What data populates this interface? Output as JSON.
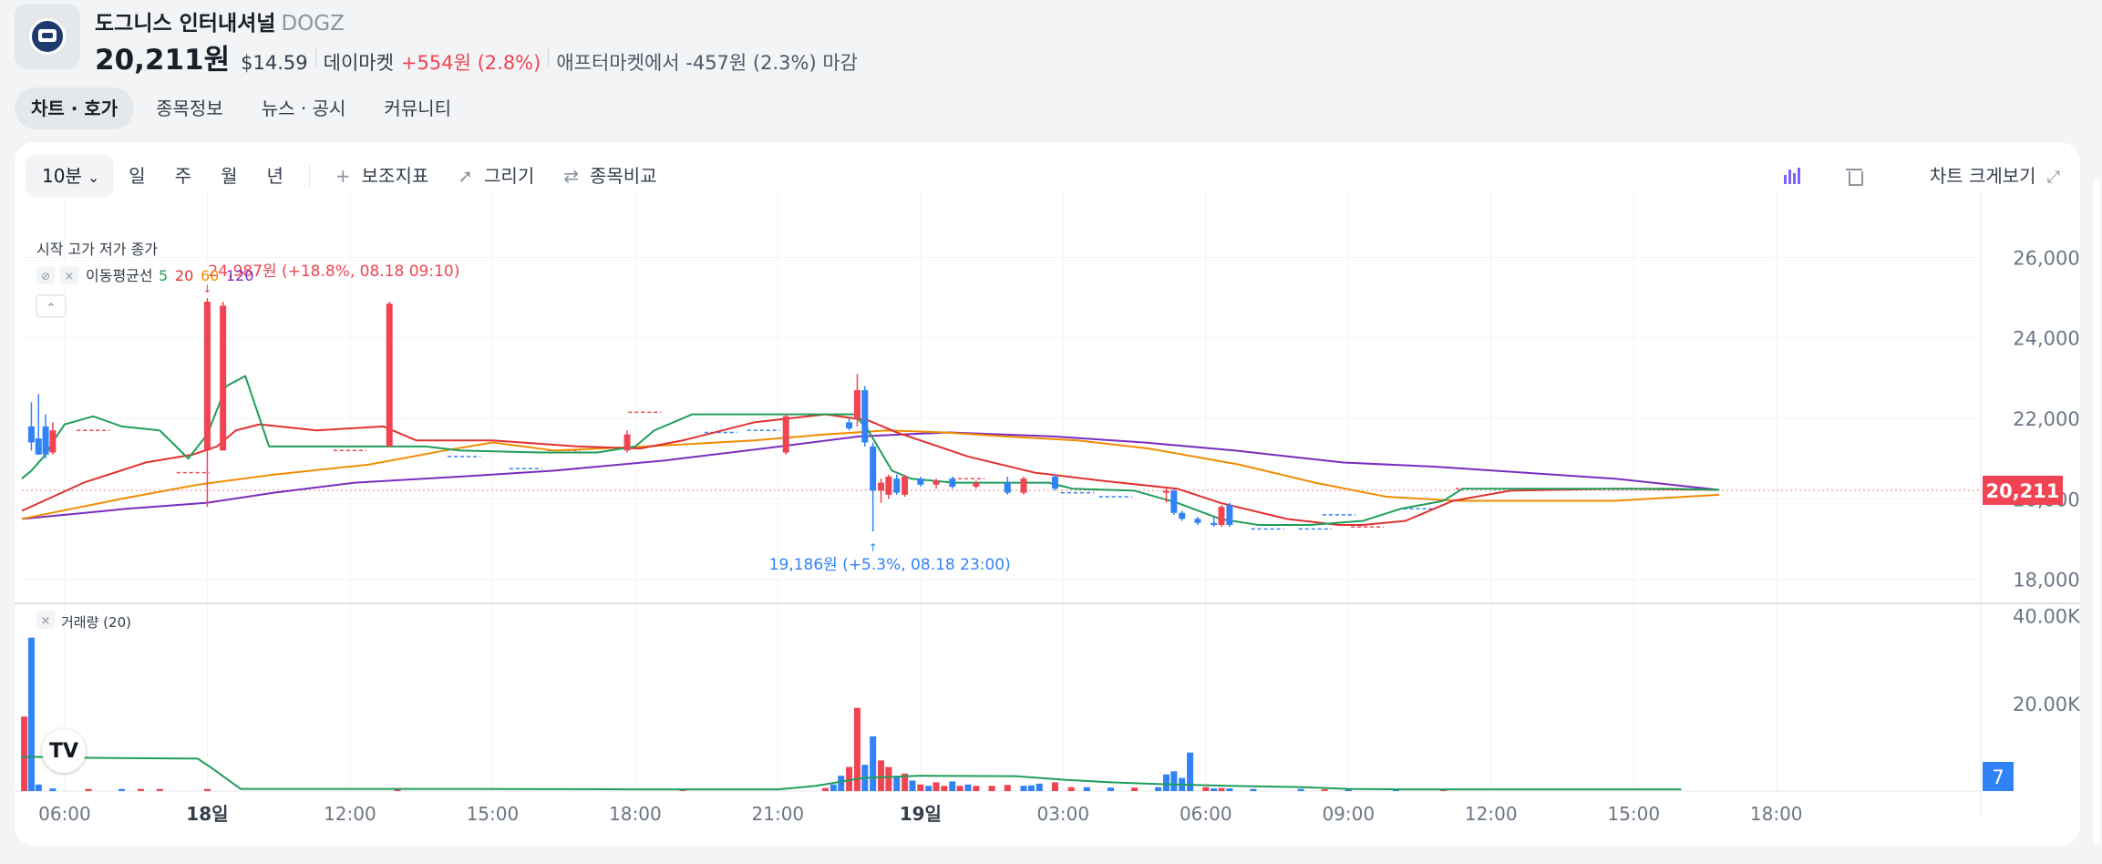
{
  "stock": {
    "name": "도그니스 인터내셔널",
    "ticker": "DOGZ",
    "price": "20,211원",
    "usd_price": "$14.59",
    "market_label": "데이마켓",
    "change": "+554원 (2.8%)",
    "after_market": "애프터마켓에서 -457원 (2.3%) 마감"
  },
  "tabs": [
    {
      "label": "차트 · 호가",
      "active": true
    },
    {
      "label": "종목정보",
      "active": false
    },
    {
      "label": "뉴스 · 공시",
      "active": false
    },
    {
      "label": "커뮤니티",
      "active": false
    }
  ],
  "toolbar": {
    "interval": "10분",
    "periods": [
      "일",
      "주",
      "월",
      "년"
    ],
    "indicators": "보조지표",
    "draw": "그리기",
    "compare": "종목비교",
    "expand": "차트 크게보기"
  },
  "colors": {
    "up": "#f04452",
    "down": "#3182f6",
    "ma5": "#1f9d5b",
    "ma20": "#e03131",
    "ma60": "#f08c00",
    "ma120": "#7b2cbf",
    "volume_ma": "#1f9d5b",
    "accent": "#3182f6"
  },
  "icons": [
    "plus-icon",
    "pencil-icon",
    "swap-icon",
    "candle-chart-icon",
    "trash-icon",
    "expand-icon",
    "eye-off-icon",
    "close-icon",
    "chevron-up-icon",
    "chevron-down-icon"
  ],
  "chart_data": {
    "type": "candlestick",
    "legend_ohlc": "시작 고가 저가 종가",
    "legend_ma": "이동평균선 5 20 60 120",
    "ma_periods": [
      "5",
      "20",
      "60",
      "120"
    ],
    "volume_legend": "거래량 (20)",
    "high_annotation": "24,987원 (+18.8%, 08.18 09:10)",
    "low_annotation": "19,186원 (+5.3%, 08.18 23:00)",
    "current_price_label": "20,211",
    "current_price": 20211,
    "volume_last_label": "7",
    "price_axis": {
      "ticks": [
        "26,000",
        "24,000",
        "22,000",
        "20,000",
        "18,000"
      ],
      "values": [
        26000,
        24000,
        22000,
        20000,
        18000
      ],
      "range": [
        17400,
        26600
      ]
    },
    "volume_axis": {
      "ticks": [
        "40.00K",
        "20.00K"
      ],
      "values": [
        40000,
        20000
      ],
      "range": [
        0,
        42000
      ]
    },
    "time_axis": {
      "labels": [
        "06:00",
        "18일",
        "12:00",
        "15:00",
        "18:00",
        "21:00",
        "19일",
        "03:00",
        "06:00",
        "09:00",
        "12:00",
        "15:00",
        "18:00"
      ],
      "hours": [
        6,
        9,
        12,
        15,
        18,
        21,
        24,
        27,
        30,
        33,
        36,
        39,
        42
      ],
      "bold": [
        false,
        true,
        false,
        false,
        false,
        false,
        true,
        false,
        false,
        false,
        false,
        false,
        false
      ]
    },
    "hour_range": [
      5.1,
      46.3
    ],
    "candles": [
      {
        "t": 5.3,
        "o": 21800,
        "h": 22400,
        "l": 21200,
        "c": 21400
      },
      {
        "t": 5.45,
        "o": 21500,
        "h": 22600,
        "l": 21100,
        "c": 21100
      },
      {
        "t": 5.6,
        "o": 21800,
        "h": 22100,
        "l": 21000,
        "c": 21100
      },
      {
        "t": 5.75,
        "o": 21150,
        "h": 21900,
        "l": 21100,
        "c": 21700
      },
      {
        "t": 9.0,
        "o": 21200,
        "h": 24987,
        "l": 19800,
        "c": 24900
      },
      {
        "t": 9.33,
        "o": 21200,
        "h": 24900,
        "l": 21200,
        "c": 24800
      },
      {
        "t": 12.83,
        "o": 21300,
        "h": 24900,
        "l": 21300,
        "c": 24850
      },
      {
        "t": 17.83,
        "o": 21200,
        "h": 21700,
        "l": 21150,
        "c": 21600
      },
      {
        "t": 21.17,
        "o": 21150,
        "h": 22100,
        "l": 21100,
        "c": 22050
      },
      {
        "t": 22.5,
        "o": 21900,
        "h": 22000,
        "l": 21700,
        "c": 21750
      },
      {
        "t": 22.67,
        "o": 22000,
        "h": 23100,
        "l": 21800,
        "c": 22700
      },
      {
        "t": 22.83,
        "o": 22700,
        "h": 22800,
        "l": 21300,
        "c": 21400
      },
      {
        "t": 23.0,
        "o": 21300,
        "h": 21400,
        "l": 19186,
        "c": 20200
      },
      {
        "t": 23.17,
        "o": 20200,
        "h": 20500,
        "l": 19900,
        "c": 20400
      },
      {
        "t": 23.33,
        "o": 20100,
        "h": 20600,
        "l": 20000,
        "c": 20550
      },
      {
        "t": 23.5,
        "o": 20500,
        "h": 20600,
        "l": 20100,
        "c": 20150
      },
      {
        "t": 23.67,
        "o": 20100,
        "h": 20600,
        "l": 20050,
        "c": 20550
      },
      {
        "t": 24.0,
        "o": 20500,
        "h": 20550,
        "l": 20300,
        "c": 20350
      },
      {
        "t": 24.33,
        "o": 20350,
        "h": 20500,
        "l": 20250,
        "c": 20450
      },
      {
        "t": 24.67,
        "o": 20500,
        "h": 20550,
        "l": 20250,
        "c": 20300
      },
      {
        "t": 25.17,
        "o": 20300,
        "h": 20450,
        "l": 20250,
        "c": 20400
      },
      {
        "t": 25.83,
        "o": 20400,
        "h": 20550,
        "l": 20100,
        "c": 20150
      },
      {
        "t": 26.17,
        "o": 20150,
        "h": 20550,
        "l": 20100,
        "c": 20500
      },
      {
        "t": 26.83,
        "o": 20550,
        "h": 20600,
        "l": 20200,
        "c": 20250
      },
      {
        "t": 29.17,
        "o": 20150,
        "h": 20250,
        "l": 19900,
        "c": 20200
      },
      {
        "t": 29.33,
        "o": 20200,
        "h": 20250,
        "l": 19600,
        "c": 19650
      },
      {
        "t": 29.5,
        "o": 19650,
        "h": 19700,
        "l": 19450,
        "c": 19500
      },
      {
        "t": 29.83,
        "o": 19500,
        "h": 19550,
        "l": 19350,
        "c": 19400
      },
      {
        "t": 30.17,
        "o": 19400,
        "h": 19550,
        "l": 19300,
        "c": 19350
      },
      {
        "t": 30.33,
        "o": 19350,
        "h": 19850,
        "l": 19300,
        "c": 19800
      },
      {
        "t": 30.5,
        "o": 19850,
        "h": 19900,
        "l": 19300,
        "c": 19350
      }
    ],
    "ma5": [
      [
        5.1,
        20500
      ],
      [
        5.3,
        20700
      ],
      [
        5.6,
        21100
      ],
      [
        5.8,
        21500
      ],
      [
        6.0,
        21850
      ],
      [
        6.3,
        21950
      ],
      [
        6.6,
        22050
      ],
      [
        7.2,
        21800
      ],
      [
        8.0,
        21700
      ],
      [
        8.6,
        21000
      ],
      [
        9.0,
        21600
      ],
      [
        9.4,
        22800
      ],
      [
        9.8,
        23050
      ],
      [
        10.3,
        21300
      ],
      [
        12.9,
        21300
      ],
      [
        13.6,
        21300
      ],
      [
        14.3,
        21200
      ],
      [
        16.0,
        21150
      ],
      [
        17.2,
        21150
      ],
      [
        18.0,
        21300
      ],
      [
        18.4,
        21700
      ],
      [
        19.2,
        22100
      ],
      [
        21.2,
        22100
      ],
      [
        22.6,
        22100
      ],
      [
        22.9,
        21700
      ],
      [
        23.4,
        20700
      ],
      [
        23.8,
        20500
      ],
      [
        24.7,
        20400
      ],
      [
        26.0,
        20400
      ],
      [
        26.7,
        20400
      ],
      [
        27.2,
        20250
      ],
      [
        28.5,
        20200
      ],
      [
        29.4,
        19900
      ],
      [
        30.3,
        19500
      ],
      [
        31.1,
        19350
      ],
      [
        32.2,
        19350
      ],
      [
        33.3,
        19450
      ],
      [
        34.1,
        19750
      ],
      [
        35.0,
        19950
      ],
      [
        35.4,
        20250
      ],
      [
        36.7,
        20250
      ],
      [
        38.4,
        20250
      ],
      [
        39.8,
        20250
      ],
      [
        40.8,
        20220
      ]
    ],
    "ma20": [
      [
        5.1,
        19700
      ],
      [
        6.4,
        20400
      ],
      [
        7.7,
        20900
      ],
      [
        8.7,
        21100
      ],
      [
        9.2,
        21300
      ],
      [
        9.6,
        21700
      ],
      [
        10.1,
        21850
      ],
      [
        11.3,
        21700
      ],
      [
        12.7,
        21800
      ],
      [
        13.4,
        21450
      ],
      [
        15.0,
        21450
      ],
      [
        16.8,
        21300
      ],
      [
        18.1,
        21250
      ],
      [
        19.0,
        21450
      ],
      [
        20.5,
        21900
      ],
      [
        22.0,
        22100
      ],
      [
        22.9,
        21950
      ],
      [
        23.5,
        21650
      ],
      [
        25.0,
        21050
      ],
      [
        26.4,
        20650
      ],
      [
        27.8,
        20450
      ],
      [
        29.4,
        20250
      ],
      [
        30.3,
        19900
      ],
      [
        31.7,
        19500
      ],
      [
        32.8,
        19350
      ],
      [
        33.3,
        19350
      ],
      [
        34.2,
        19450
      ],
      [
        35.2,
        19950
      ],
      [
        36.4,
        20200
      ],
      [
        38.6,
        20250
      ],
      [
        40.8,
        20220
      ]
    ],
    "ma60": [
      [
        5.1,
        19500
      ],
      [
        7.2,
        20000
      ],
      [
        8.8,
        20350
      ],
      [
        10.4,
        20600
      ],
      [
        12.4,
        20850
      ],
      [
        14.0,
        21200
      ],
      [
        15.0,
        21400
      ],
      [
        16.3,
        21200
      ],
      [
        18.2,
        21300
      ],
      [
        20.5,
        21450
      ],
      [
        22.0,
        21600
      ],
      [
        23.3,
        21700
      ],
      [
        24.5,
        21650
      ],
      [
        25.8,
        21550
      ],
      [
        27.3,
        21450
      ],
      [
        28.8,
        21250
      ],
      [
        30.7,
        20850
      ],
      [
        32.3,
        20400
      ],
      [
        33.8,
        20050
      ],
      [
        35.3,
        19950
      ],
      [
        37.0,
        19950
      ],
      [
        38.6,
        19950
      ],
      [
        40.8,
        20100
      ]
    ],
    "ma120": [
      [
        5.1,
        19500
      ],
      [
        7.3,
        19750
      ],
      [
        9.0,
        19900
      ],
      [
        10.4,
        20150
      ],
      [
        12.1,
        20400
      ],
      [
        14.3,
        20550
      ],
      [
        16.3,
        20700
      ],
      [
        18.6,
        20950
      ],
      [
        20.7,
        21250
      ],
      [
        22.7,
        21550
      ],
      [
        24.6,
        21650
      ],
      [
        26.8,
        21550
      ],
      [
        28.7,
        21400
      ],
      [
        30.6,
        21200
      ],
      [
        32.9,
        20900
      ],
      [
        34.8,
        20800
      ],
      [
        36.7,
        20650
      ],
      [
        38.6,
        20500
      ],
      [
        40.8,
        20220
      ]
    ],
    "dashes": [
      {
        "t": 6.6,
        "y": 21700,
        "up": true
      },
      {
        "t": 8.7,
        "y": 20650,
        "up": true
      },
      {
        "t": 12.0,
        "y": 21200,
        "up": true
      },
      {
        "t": 14.4,
        "y": 21050,
        "up": false
      },
      {
        "t": 15.7,
        "y": 20750,
        "up": false
      },
      {
        "t": 16.5,
        "y": 21200,
        "up": true
      },
      {
        "t": 18.2,
        "y": 22150,
        "up": true
      },
      {
        "t": 19.8,
        "y": 21650,
        "up": false
      },
      {
        "t": 20.7,
        "y": 21700,
        "up": false
      },
      {
        "t": 25.0,
        "y": 20500,
        "up": true
      },
      {
        "t": 27.3,
        "y": 20150,
        "up": false
      },
      {
        "t": 28.1,
        "y": 20050,
        "up": false
      },
      {
        "t": 31.3,
        "y": 19250,
        "up": false
      },
      {
        "t": 32.3,
        "y": 19250,
        "up": false
      },
      {
        "t": 33.4,
        "y": 19300,
        "up": true
      },
      {
        "t": 32.8,
        "y": 19600,
        "up": false
      },
      {
        "t": 34.5,
        "y": 19750,
        "up": false
      },
      {
        "t": 35.6,
        "y": 20250,
        "up": true
      }
    ],
    "volume": [
      {
        "t": 5.15,
        "v": 17000,
        "up": true
      },
      {
        "t": 5.3,
        "v": 35000,
        "up": false
      },
      {
        "t": 5.45,
        "v": 1500,
        "up": false
      },
      {
        "t": 5.75,
        "v": 600,
        "up": false
      },
      {
        "t": 6.5,
        "v": 500,
        "up": true
      },
      {
        "t": 7.2,
        "v": 500,
        "up": false
      },
      {
        "t": 7.6,
        "v": 500,
        "up": true
      },
      {
        "t": 8.0,
        "v": 500,
        "up": true
      },
      {
        "t": 9.0,
        "v": 500,
        "up": true
      },
      {
        "t": 13.0,
        "v": 400,
        "up": true
      },
      {
        "t": 19.0,
        "v": 400,
        "up": true
      },
      {
        "t": 22.0,
        "v": 700,
        "up": true
      },
      {
        "t": 22.17,
        "v": 1500,
        "up": false
      },
      {
        "t": 22.33,
        "v": 3500,
        "up": false
      },
      {
        "t": 22.5,
        "v": 5500,
        "up": true
      },
      {
        "t": 22.67,
        "v": 19000,
        "up": true
      },
      {
        "t": 22.83,
        "v": 6000,
        "up": false
      },
      {
        "t": 23.0,
        "v": 12500,
        "up": false
      },
      {
        "t": 23.17,
        "v": 7000,
        "up": true
      },
      {
        "t": 23.33,
        "v": 5500,
        "up": true
      },
      {
        "t": 23.5,
        "v": 3200,
        "up": false
      },
      {
        "t": 23.67,
        "v": 4000,
        "up": true
      },
      {
        "t": 23.83,
        "v": 2400,
        "up": false
      },
      {
        "t": 24.0,
        "v": 1500,
        "up": true
      },
      {
        "t": 24.17,
        "v": 1200,
        "up": false
      },
      {
        "t": 24.33,
        "v": 2000,
        "up": true
      },
      {
        "t": 24.5,
        "v": 1200,
        "up": true
      },
      {
        "t": 24.67,
        "v": 2200,
        "up": false
      },
      {
        "t": 24.83,
        "v": 1200,
        "up": true
      },
      {
        "t": 25.0,
        "v": 1500,
        "up": false
      },
      {
        "t": 25.17,
        "v": 1200,
        "up": true
      },
      {
        "t": 25.5,
        "v": 1200,
        "up": true
      },
      {
        "t": 25.83,
        "v": 1400,
        "up": true
      },
      {
        "t": 26.17,
        "v": 1200,
        "up": false
      },
      {
        "t": 26.33,
        "v": 1300,
        "up": false
      },
      {
        "t": 26.5,
        "v": 1700,
        "up": false
      },
      {
        "t": 26.83,
        "v": 2000,
        "up": true
      },
      {
        "t": 27.17,
        "v": 900,
        "up": true
      },
      {
        "t": 27.5,
        "v": 900,
        "up": false
      },
      {
        "t": 28.0,
        "v": 800,
        "up": false
      },
      {
        "t": 28.5,
        "v": 800,
        "up": true
      },
      {
        "t": 29.0,
        "v": 900,
        "up": false
      },
      {
        "t": 29.17,
        "v": 3800,
        "up": false
      },
      {
        "t": 29.33,
        "v": 4500,
        "up": false
      },
      {
        "t": 29.5,
        "v": 3000,
        "up": false
      },
      {
        "t": 29.67,
        "v": 8800,
        "up": false
      },
      {
        "t": 30.0,
        "v": 900,
        "up": true
      },
      {
        "t": 30.17,
        "v": 600,
        "up": false
      },
      {
        "t": 30.33,
        "v": 700,
        "up": true
      },
      {
        "t": 30.5,
        "v": 600,
        "up": false
      },
      {
        "t": 31.0,
        "v": 500,
        "up": false
      },
      {
        "t": 32.0,
        "v": 500,
        "up": false
      },
      {
        "t": 32.5,
        "v": 400,
        "up": true
      },
      {
        "t": 33.0,
        "v": 400,
        "up": false
      },
      {
        "t": 34.0,
        "v": 400,
        "up": false
      },
      {
        "t": 35.0,
        "v": 400,
        "up": true
      }
    ],
    "volume_ma": [
      [
        5.1,
        7800
      ],
      [
        5.6,
        7800
      ],
      [
        6.5,
        7600
      ],
      [
        8.8,
        7400
      ],
      [
        9.1,
        5200
      ],
      [
        9.7,
        500
      ],
      [
        14.0,
        500
      ],
      [
        18.0,
        400
      ],
      [
        21.0,
        400
      ],
      [
        21.8,
        1200
      ],
      [
        22.8,
        3000
      ],
      [
        24.0,
        3500
      ],
      [
        26.0,
        3400
      ],
      [
        27.0,
        2600
      ],
      [
        28.0,
        2000
      ],
      [
        29.0,
        1600
      ],
      [
        30.5,
        1200
      ],
      [
        32.0,
        900
      ],
      [
        33.0,
        500
      ],
      [
        34.0,
        400
      ],
      [
        36.0,
        400
      ],
      [
        40.0,
        400
      ]
    ]
  }
}
